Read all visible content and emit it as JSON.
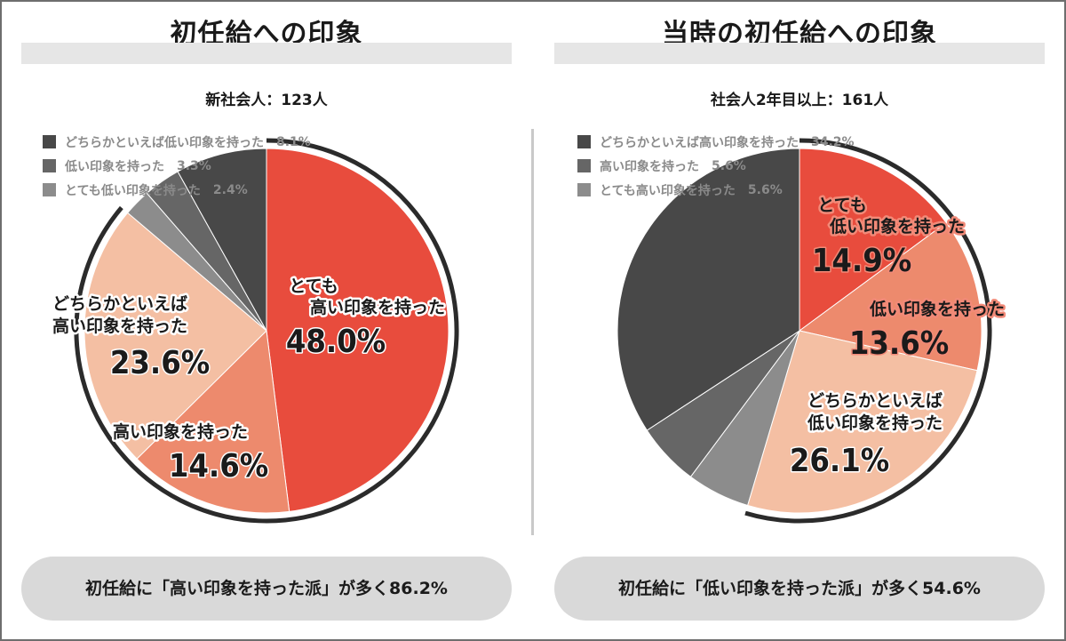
{
  "colors": {
    "very_high": "#e84c3d",
    "high": "#ed8a6d",
    "somewhat_high": "#f4bfa3",
    "very_low": "#8c8c8c",
    "low": "#666666",
    "somewhat_low": "#484848",
    "label_halo_right": "#f28a78"
  },
  "left": {
    "title": "初任給への印象",
    "subtitle": "新社会人：123人",
    "legend": [
      {
        "label": "どちらかといえば低い印象を持った",
        "value": "8.1%",
        "color": "#484848"
      },
      {
        "label": "低い印象を持った",
        "value": "3.3%",
        "color": "#666666"
      },
      {
        "label": "とても低い印象を持った",
        "value": "2.4%",
        "color": "#8c8c8c"
      }
    ],
    "labels": {
      "very_high_l1": "とても",
      "very_high_l2": "高い印象を持った",
      "very_high_pct": "48.0%",
      "high_l1": "高い印象を持った",
      "high_pct": "14.6%",
      "somewhat_high_l1": "どちらかといえば",
      "somewhat_high_l2": "高い印象を持った",
      "somewhat_high_pct": "23.6%"
    },
    "summary": "初任給に「高い印象を持った派」が多く86.2%"
  },
  "right": {
    "title": "当時の初任給への印象",
    "subtitle": "社会人2年目以上：161人",
    "legend": [
      {
        "label": "どちらかといえば高い印象を持った",
        "value": "34.2%",
        "color": "#484848"
      },
      {
        "label": "高い印象を持った",
        "value": "5.6%",
        "color": "#666666"
      },
      {
        "label": "とても高い印象を持った",
        "value": "5.6%",
        "color": "#8c8c8c"
      }
    ],
    "labels": {
      "very_low_l1": "とても",
      "very_low_l2": "低い印象を持った",
      "very_low_pct": "14.9%",
      "low_l1": "低い印象を持った",
      "low_pct": "13.6%",
      "somewhat_low_l1": "どちらかといえば",
      "somewhat_low_l2": "低い印象を持った",
      "somewhat_low_pct": "26.1%"
    },
    "summary": "初任給に「低い印象を持った派」が多く54.6%"
  },
  "chart_data": [
    {
      "type": "pie",
      "title": "初任給への印象",
      "subtitle": "新社会人：123人",
      "slices": [
        {
          "label": "とても高い印象を持った",
          "value": 48.0,
          "color": "#e84c3d"
        },
        {
          "label": "高い印象を持った",
          "value": 14.6,
          "color": "#ed8a6d"
        },
        {
          "label": "どちらかといえば高い印象を持った",
          "value": 23.6,
          "color": "#f4bfa3"
        },
        {
          "label": "とても低い印象を持った",
          "value": 2.4,
          "color": "#8c8c8c"
        },
        {
          "label": "低い印象を持った",
          "value": 3.3,
          "color": "#666666"
        },
        {
          "label": "どちらかといえば低い印象を持った",
          "value": 8.1,
          "color": "#484848"
        }
      ],
      "highlight_arc_total": 86.2
    },
    {
      "type": "pie",
      "title": "当時の初任給への印象",
      "subtitle": "社会人2年目以上：161人",
      "slices": [
        {
          "label": "とても低い印象を持った",
          "value": 14.9,
          "color": "#e84c3d"
        },
        {
          "label": "低い印象を持った",
          "value": 13.6,
          "color": "#ed8a6d"
        },
        {
          "label": "どちらかといえば低い印象を持った",
          "value": 26.1,
          "color": "#f4bfa3"
        },
        {
          "label": "とても高い印象を持った",
          "value": 5.6,
          "color": "#8c8c8c"
        },
        {
          "label": "高い印象を持った",
          "value": 5.6,
          "color": "#666666"
        },
        {
          "label": "どちらかといえば高い印象を持った",
          "value": 34.2,
          "color": "#484848"
        }
      ],
      "highlight_arc_total": 54.6
    }
  ]
}
